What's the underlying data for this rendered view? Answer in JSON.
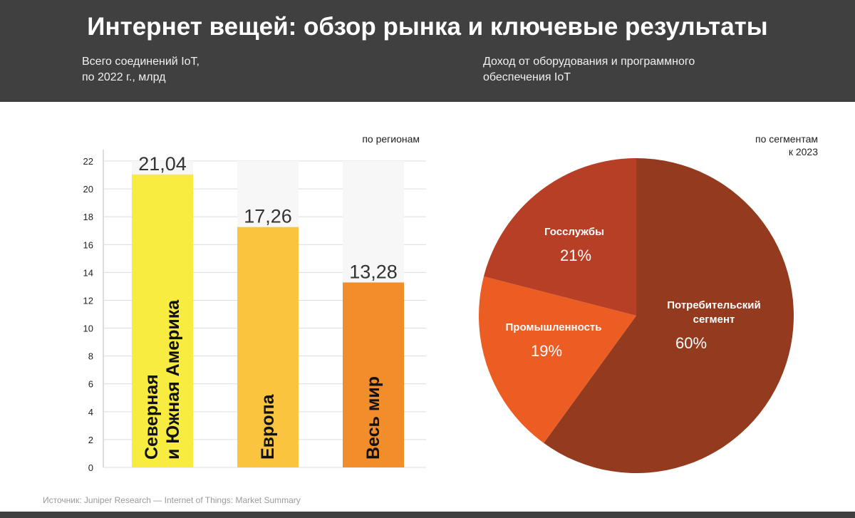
{
  "title": "Интернет вещей: обзор рынка и ключевые результаты",
  "left_subtitle": "Всего соединений IoT,\nпо 2022 г., млрд",
  "right_subtitle": "Доход от оборудования и программного\nобеспечения IoT",
  "source": "Источник: Juniper Research — Internet of Things: Market Summary",
  "colors": {
    "header": "#404040"
  },
  "chart_data": [
    {
      "type": "bar",
      "note": "по регионам",
      "categories": [
        [
          "Северная",
          "и Южная Америка"
        ],
        [
          "Европа"
        ],
        [
          "Весь мир"
        ]
      ],
      "values": [
        21.04,
        17.26,
        13.28
      ],
      "value_labels": [
        "21,04",
        "17,26",
        "13,28"
      ],
      "colors": [
        "#f7ec3f",
        "#fbc43e",
        "#f28d2b"
      ],
      "yticks": [
        0,
        2,
        4,
        6,
        8,
        10,
        12,
        14,
        16,
        18,
        20,
        22
      ],
      "ylim": [
        0,
        22
      ],
      "grid": true
    },
    {
      "type": "pie",
      "note": "по сегментам\nк 2023",
      "slices": [
        {
          "name": [
            "Потребительский",
            "сегмент"
          ],
          "value": 60,
          "label": "60%",
          "color": "#943a1f"
        },
        {
          "name": [
            "Промышленность"
          ],
          "value": 19,
          "label": "19%",
          "color": "#ec5d24"
        },
        {
          "name": [
            "Госслужбы"
          ],
          "value": 21,
          "label": "21%",
          "color": "#b63f26"
        }
      ]
    }
  ]
}
